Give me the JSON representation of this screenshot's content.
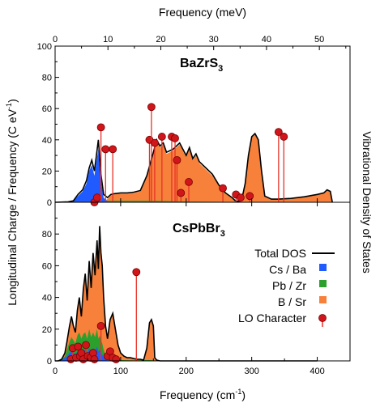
{
  "colors": {
    "cs_ba": "#1f5bff",
    "pb_zr": "#2ca02c",
    "b_sr": "#f7813a",
    "total": "#000000",
    "lo_stem": "#e8322a",
    "lo_marker": "#d0161b"
  },
  "labels": {
    "top_axis": "Frequency (meV)",
    "bottom_axis": "Frequency (cm",
    "bottom_axis_sup": "-1",
    "bottom_axis_end": ")",
    "left_axis": "Longitudinal Charge / Frequency (C eV",
    "left_axis_sup": "-1",
    "left_axis_end": ")",
    "right_axis": "Vibrational Density of States",
    "top_panel_title": "BaZrS",
    "top_panel_sub": "3",
    "bottom_panel_title": "CsPbBr",
    "bottom_panel_sub": "3"
  },
  "legend": {
    "total": "Total DOS",
    "cs_ba": "Cs / Ba",
    "pb_zr": "Pb / Zr",
    "b_sr": "B / Sr",
    "lo": "LO Character"
  },
  "chart_data": {
    "type": "area",
    "x_unit_bottom": "cm-1",
    "x_unit_top": "meV",
    "xlim_bottom": [
      0,
      450
    ],
    "xticks_bottom": [
      0,
      100,
      200,
      300,
      400
    ],
    "xticks_minor_bottom": [
      50,
      150,
      250,
      350
    ],
    "xlim_top_mev": [
      0,
      55.8
    ],
    "xticks_top": [
      0,
      10,
      20,
      30,
      40,
      50
    ],
    "top_panel": {
      "title": "BaZrS3",
      "ylim": [
        0,
        100
      ],
      "yticks": [
        0,
        20,
        40,
        60,
        80,
        100
      ],
      "total_dos": [
        [
          0,
          0
        ],
        [
          20,
          0.3
        ],
        [
          28,
          1
        ],
        [
          35,
          5
        ],
        [
          42,
          8
        ],
        [
          48,
          14
        ],
        [
          52,
          22
        ],
        [
          56,
          27
        ],
        [
          60,
          20
        ],
        [
          63,
          30
        ],
        [
          66,
          40
        ],
        [
          70,
          18
        ],
        [
          74,
          5
        ],
        [
          80,
          3
        ],
        [
          85,
          5
        ],
        [
          90,
          5.5
        ],
        [
          100,
          6
        ],
        [
          110,
          6
        ],
        [
          120,
          6.5
        ],
        [
          130,
          7.5
        ],
        [
          140,
          17
        ],
        [
          150,
          32
        ],
        [
          155,
          40
        ],
        [
          160,
          36
        ],
        [
          165,
          38
        ],
        [
          170,
          32
        ],
        [
          180,
          34
        ],
        [
          190,
          38
        ],
        [
          195,
          34
        ],
        [
          200,
          30
        ],
        [
          205,
          35
        ],
        [
          210,
          28
        ],
        [
          215,
          31
        ],
        [
          220,
          26
        ],
        [
          230,
          22
        ],
        [
          240,
          18
        ],
        [
          250,
          11
        ],
        [
          260,
          6
        ],
        [
          270,
          3
        ],
        [
          275,
          1
        ],
        [
          280,
          0.5
        ],
        [
          285,
          2
        ],
        [
          290,
          12
        ],
        [
          295,
          30
        ],
        [
          300,
          42
        ],
        [
          305,
          44
        ],
        [
          310,
          40
        ],
        [
          315,
          20
        ],
        [
          320,
          4
        ],
        [
          330,
          2
        ],
        [
          340,
          2
        ],
        [
          360,
          2.5
        ],
        [
          380,
          3.5
        ],
        [
          400,
          5
        ],
        [
          410,
          6
        ],
        [
          415,
          8
        ],
        [
          420,
          7
        ],
        [
          423,
          0
        ]
      ],
      "cs_ba": [
        [
          0,
          0
        ],
        [
          20,
          0.2
        ],
        [
          28,
          1
        ],
        [
          35,
          4
        ],
        [
          42,
          7
        ],
        [
          48,
          12
        ],
        [
          52,
          20
        ],
        [
          56,
          24
        ],
        [
          60,
          17
        ],
        [
          63,
          26
        ],
        [
          66,
          34
        ],
        [
          70,
          14
        ],
        [
          74,
          3
        ],
        [
          80,
          0.5
        ],
        [
          90,
          0
        ]
      ],
      "pb_zr": [
        [
          0,
          0
        ],
        [
          28,
          0.5
        ],
        [
          35,
          1
        ],
        [
          42,
          1
        ],
        [
          48,
          1.5
        ],
        [
          52,
          2
        ],
        [
          56,
          2
        ],
        [
          60,
          2
        ],
        [
          63,
          2.5
        ],
        [
          66,
          3
        ],
        [
          70,
          2
        ],
        [
          74,
          1
        ],
        [
          80,
          1
        ],
        [
          90,
          1
        ],
        [
          120,
          1
        ],
        [
          150,
          1
        ],
        [
          200,
          0.5
        ],
        [
          250,
          0.3
        ],
        [
          300,
          0
        ]
      ],
      "b_sr": [
        [
          0,
          0
        ],
        [
          40,
          0
        ],
        [
          48,
          0.5
        ],
        [
          56,
          1
        ],
        [
          66,
          3
        ],
        [
          70,
          2
        ],
        [
          74,
          1
        ],
        [
          80,
          2
        ],
        [
          85,
          4.5
        ],
        [
          90,
          5
        ],
        [
          100,
          5.5
        ],
        [
          110,
          5.5
        ],
        [
          120,
          6
        ],
        [
          130,
          7
        ],
        [
          140,
          16
        ],
        [
          150,
          31
        ],
        [
          155,
          39
        ],
        [
          160,
          35
        ],
        [
          165,
          37
        ],
        [
          170,
          31
        ],
        [
          180,
          33
        ],
        [
          190,
          37
        ],
        [
          195,
          33
        ],
        [
          200,
          29
        ],
        [
          205,
          34
        ],
        [
          210,
          27
        ],
        [
          215,
          30
        ],
        [
          220,
          25
        ],
        [
          230,
          21
        ],
        [
          240,
          17
        ],
        [
          250,
          10.5
        ],
        [
          260,
          5.5
        ],
        [
          270,
          2.5
        ],
        [
          275,
          0.5
        ],
        [
          280,
          0.3
        ],
        [
          285,
          1.5
        ],
        [
          290,
          11.5
        ],
        [
          295,
          29.5
        ],
        [
          300,
          41.5
        ],
        [
          305,
          43.5
        ],
        [
          310,
          39.5
        ],
        [
          315,
          19.5
        ],
        [
          320,
          3.5
        ],
        [
          330,
          1.8
        ],
        [
          340,
          1.8
        ],
        [
          360,
          2.3
        ],
        [
          380,
          3.3
        ],
        [
          400,
          4.8
        ],
        [
          410,
          5.8
        ],
        [
          415,
          7.8
        ],
        [
          420,
          6.8
        ],
        [
          423,
          0
        ]
      ],
      "lo_character": [
        [
          60,
          0
        ],
        [
          64,
          3
        ],
        [
          70,
          48
        ],
        [
          77,
          34
        ],
        [
          88,
          34
        ],
        [
          144,
          40
        ],
        [
          147,
          61
        ],
        [
          152,
          38
        ],
        [
          163,
          42
        ],
        [
          178,
          42
        ],
        [
          183,
          41
        ],
        [
          186,
          27
        ],
        [
          192,
          6
        ],
        [
          204,
          13
        ],
        [
          256,
          9
        ],
        [
          276,
          5
        ],
        [
          283,
          3
        ],
        [
          297,
          4
        ],
        [
          341,
          45
        ],
        [
          349,
          42
        ]
      ]
    },
    "bottom_panel": {
      "title": "CsPbBr3",
      "ylim": [
        0,
        100
      ],
      "yticks": [
        0,
        20,
        40,
        60,
        80
      ],
      "total_dos": [
        [
          0,
          0
        ],
        [
          5,
          0
        ],
        [
          10,
          1
        ],
        [
          15,
          5
        ],
        [
          18,
          12
        ],
        [
          22,
          22
        ],
        [
          25,
          28
        ],
        [
          28,
          22
        ],
        [
          31,
          18
        ],
        [
          34,
          32
        ],
        [
          37,
          40
        ],
        [
          40,
          28
        ],
        [
          43,
          45
        ],
        [
          46,
          55
        ],
        [
          49,
          38
        ],
        [
          52,
          63
        ],
        [
          55,
          46
        ],
        [
          58,
          68
        ],
        [
          61,
          54
        ],
        [
          64,
          76
        ],
        [
          66,
          58
        ],
        [
          68,
          85
        ],
        [
          70,
          68
        ],
        [
          72,
          60
        ],
        [
          74,
          40
        ],
        [
          77,
          22
        ],
        [
          80,
          14
        ],
        [
          84,
          26
        ],
        [
          88,
          30
        ],
        [
          92,
          20
        ],
        [
          96,
          10
        ],
        [
          100,
          5
        ],
        [
          105,
          3
        ],
        [
          110,
          2
        ],
        [
          115,
          2
        ],
        [
          120,
          1.5
        ],
        [
          125,
          1
        ],
        [
          130,
          1
        ],
        [
          135,
          0.5
        ],
        [
          140,
          8
        ],
        [
          144,
          24
        ],
        [
          147,
          26
        ],
        [
          150,
          22
        ],
        [
          152,
          2
        ],
        [
          155,
          0.5
        ],
        [
          160,
          0
        ],
        [
          400,
          0
        ]
      ],
      "cs_ba": [
        [
          0,
          0
        ],
        [
          10,
          0.5
        ],
        [
          15,
          2
        ],
        [
          18,
          3
        ],
        [
          22,
          5
        ],
        [
          25,
          6
        ],
        [
          28,
          5
        ],
        [
          31,
          4
        ],
        [
          34,
          6
        ],
        [
          37,
          7
        ],
        [
          40,
          5
        ],
        [
          43,
          6
        ],
        [
          46,
          7
        ],
        [
          49,
          5
        ],
        [
          52,
          8
        ],
        [
          55,
          6
        ],
        [
          58,
          8
        ],
        [
          61,
          6
        ],
        [
          64,
          9
        ],
        [
          66,
          6
        ],
        [
          68,
          7
        ],
        [
          70,
          5
        ],
        [
          72,
          4
        ],
        [
          74,
          2
        ],
        [
          77,
          1
        ],
        [
          80,
          0.5
        ],
        [
          90,
          0
        ]
      ],
      "pb_zr": [
        [
          0,
          0
        ],
        [
          10,
          0.8
        ],
        [
          15,
          3
        ],
        [
          18,
          7
        ],
        [
          22,
          12
        ],
        [
          25,
          15
        ],
        [
          28,
          13
        ],
        [
          31,
          11
        ],
        [
          34,
          16
        ],
        [
          37,
          18
        ],
        [
          40,
          14
        ],
        [
          43,
          17
        ],
        [
          46,
          18
        ],
        [
          49,
          14
        ],
        [
          52,
          20
        ],
        [
          55,
          15
        ],
        [
          58,
          18
        ],
        [
          61,
          15
        ],
        [
          64,
          20
        ],
        [
          66,
          14
        ],
        [
          68,
          16
        ],
        [
          70,
          13
        ],
        [
          72,
          11
        ],
        [
          74,
          7
        ],
        [
          77,
          4
        ],
        [
          80,
          2.5
        ],
        [
          84,
          3.5
        ],
        [
          88,
          4
        ],
        [
          92,
          2.5
        ],
        [
          96,
          1
        ],
        [
          100,
          0.5
        ],
        [
          120,
          0.3
        ],
        [
          140,
          0.5
        ],
        [
          147,
          0.5
        ],
        [
          150,
          0.3
        ],
        [
          160,
          0
        ]
      ],
      "b_sr": [
        [
          0,
          0
        ],
        [
          5,
          0
        ],
        [
          10,
          1
        ],
        [
          15,
          5
        ],
        [
          18,
          12
        ],
        [
          22,
          22
        ],
        [
          25,
          28
        ],
        [
          28,
          22
        ],
        [
          31,
          18
        ],
        [
          34,
          32
        ],
        [
          37,
          40
        ],
        [
          40,
          28
        ],
        [
          43,
          45
        ],
        [
          46,
          55
        ],
        [
          49,
          38
        ],
        [
          52,
          63
        ],
        [
          55,
          46
        ],
        [
          58,
          68
        ],
        [
          61,
          54
        ],
        [
          64,
          76
        ],
        [
          66,
          58
        ],
        [
          68,
          85
        ],
        [
          70,
          68
        ],
        [
          72,
          60
        ],
        [
          74,
          40
        ],
        [
          77,
          22
        ],
        [
          80,
          14
        ],
        [
          84,
          26
        ],
        [
          88,
          30
        ],
        [
          92,
          20
        ],
        [
          96,
          10
        ],
        [
          100,
          5
        ],
        [
          105,
          3
        ],
        [
          110,
          2
        ],
        [
          115,
          2
        ],
        [
          120,
          1.5
        ],
        [
          125,
          1
        ],
        [
          130,
          1
        ],
        [
          135,
          0.5
        ],
        [
          140,
          8
        ],
        [
          144,
          24
        ],
        [
          147,
          26
        ],
        [
          150,
          22
        ],
        [
          152,
          2
        ],
        [
          155,
          0.5
        ],
        [
          160,
          0
        ]
      ],
      "lo_character": [
        [
          24,
          1
        ],
        [
          27,
          8
        ],
        [
          32,
          2
        ],
        [
          35,
          9
        ],
        [
          38,
          3
        ],
        [
          40,
          5
        ],
        [
          43,
          1
        ],
        [
          47,
          10
        ],
        [
          50,
          3
        ],
        [
          54,
          2
        ],
        [
          58,
          5
        ],
        [
          60,
          1
        ],
        [
          70,
          22
        ],
        [
          80,
          3
        ],
        [
          84,
          6
        ],
        [
          88,
          2
        ],
        [
          93,
          1
        ],
        [
          124,
          56
        ]
      ]
    }
  }
}
